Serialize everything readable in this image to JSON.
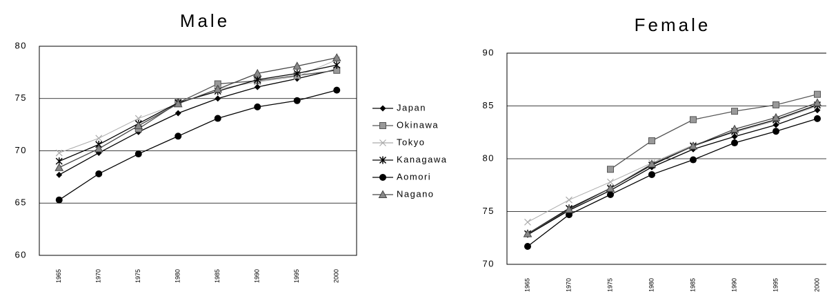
{
  "chart_data": [
    {
      "type": "line",
      "title": "Male",
      "categories": [
        "1965",
        "1970",
        "1975",
        "1980",
        "1985",
        "1990",
        "1995",
        "2000"
      ],
      "ylim": [
        60,
        80
      ],
      "yticks": [
        60,
        65,
        70,
        75,
        80
      ],
      "grid": true,
      "legend": "right",
      "series": [
        {
          "name": "Japan",
          "color": "#000000",
          "marker": "diamond",
          "values": [
            67.7,
            69.8,
            71.8,
            73.6,
            75.0,
            76.1,
            76.9,
            77.8
          ]
        },
        {
          "name": "Okinawa",
          "color": "#555555",
          "marker": "square",
          "values": [
            null,
            null,
            72.1,
            74.6,
            76.4,
            76.7,
            77.2,
            77.7
          ]
        },
        {
          "name": "Tokyo",
          "color": "#aaaaaa",
          "marker": "x",
          "values": [
            69.8,
            71.2,
            73.1,
            74.5,
            75.9,
            76.6,
            77.1,
            78.7
          ]
        },
        {
          "name": "Kanagawa",
          "color": "#000000",
          "marker": "star",
          "values": [
            69.0,
            70.6,
            72.6,
            74.6,
            75.7,
            76.8,
            77.4,
            78.2
          ]
        },
        {
          "name": "Aomori",
          "color": "#000000",
          "marker": "circle",
          "values": [
            65.3,
            67.8,
            69.7,
            71.4,
            73.1,
            74.2,
            74.8,
            75.8
          ]
        },
        {
          "name": "Nagano",
          "color": "#444444",
          "marker": "triangle",
          "values": [
            68.4,
            70.2,
            72.4,
            74.5,
            75.9,
            77.4,
            78.1,
            78.9
          ]
        }
      ]
    },
    {
      "type": "line",
      "title": "Female",
      "categories": [
        "1965",
        "1970",
        "1975",
        "1980",
        "1985",
        "1990",
        "1995",
        "2000"
      ],
      "ylim": [
        70,
        90
      ],
      "yticks": [
        70,
        75,
        80,
        85,
        90
      ],
      "grid": true,
      "series": [
        {
          "color": "#000000",
          "marker": "diamond",
          "values": [
            72.8,
            75.1,
            77.0,
            79.2,
            80.9,
            82.1,
            83.2,
            84.6
          ]
        },
        {
          "color": "#555555",
          "marker": "square",
          "values": [
            null,
            null,
            79.0,
            81.7,
            83.7,
            84.5,
            85.1,
            86.1
          ]
        },
        {
          "color": "#aaaaaa",
          "marker": "x",
          "values": [
            74.0,
            76.1,
            77.8,
            79.6,
            81.3,
            82.5,
            83.6,
            85.0
          ]
        },
        {
          "color": "#000000",
          "marker": "star",
          "values": [
            72.9,
            75.3,
            77.2,
            79.4,
            81.2,
            82.6,
            83.7,
            85.1
          ]
        },
        {
          "color": "#000000",
          "marker": "circle",
          "values": [
            71.7,
            74.7,
            76.6,
            78.5,
            79.9,
            81.5,
            82.6,
            83.8
          ]
        },
        {
          "color": "#444444",
          "marker": "triangle",
          "values": [
            72.9,
            75.2,
            77.2,
            79.5,
            81.2,
            82.8,
            83.9,
            85.3
          ]
        }
      ]
    }
  ]
}
